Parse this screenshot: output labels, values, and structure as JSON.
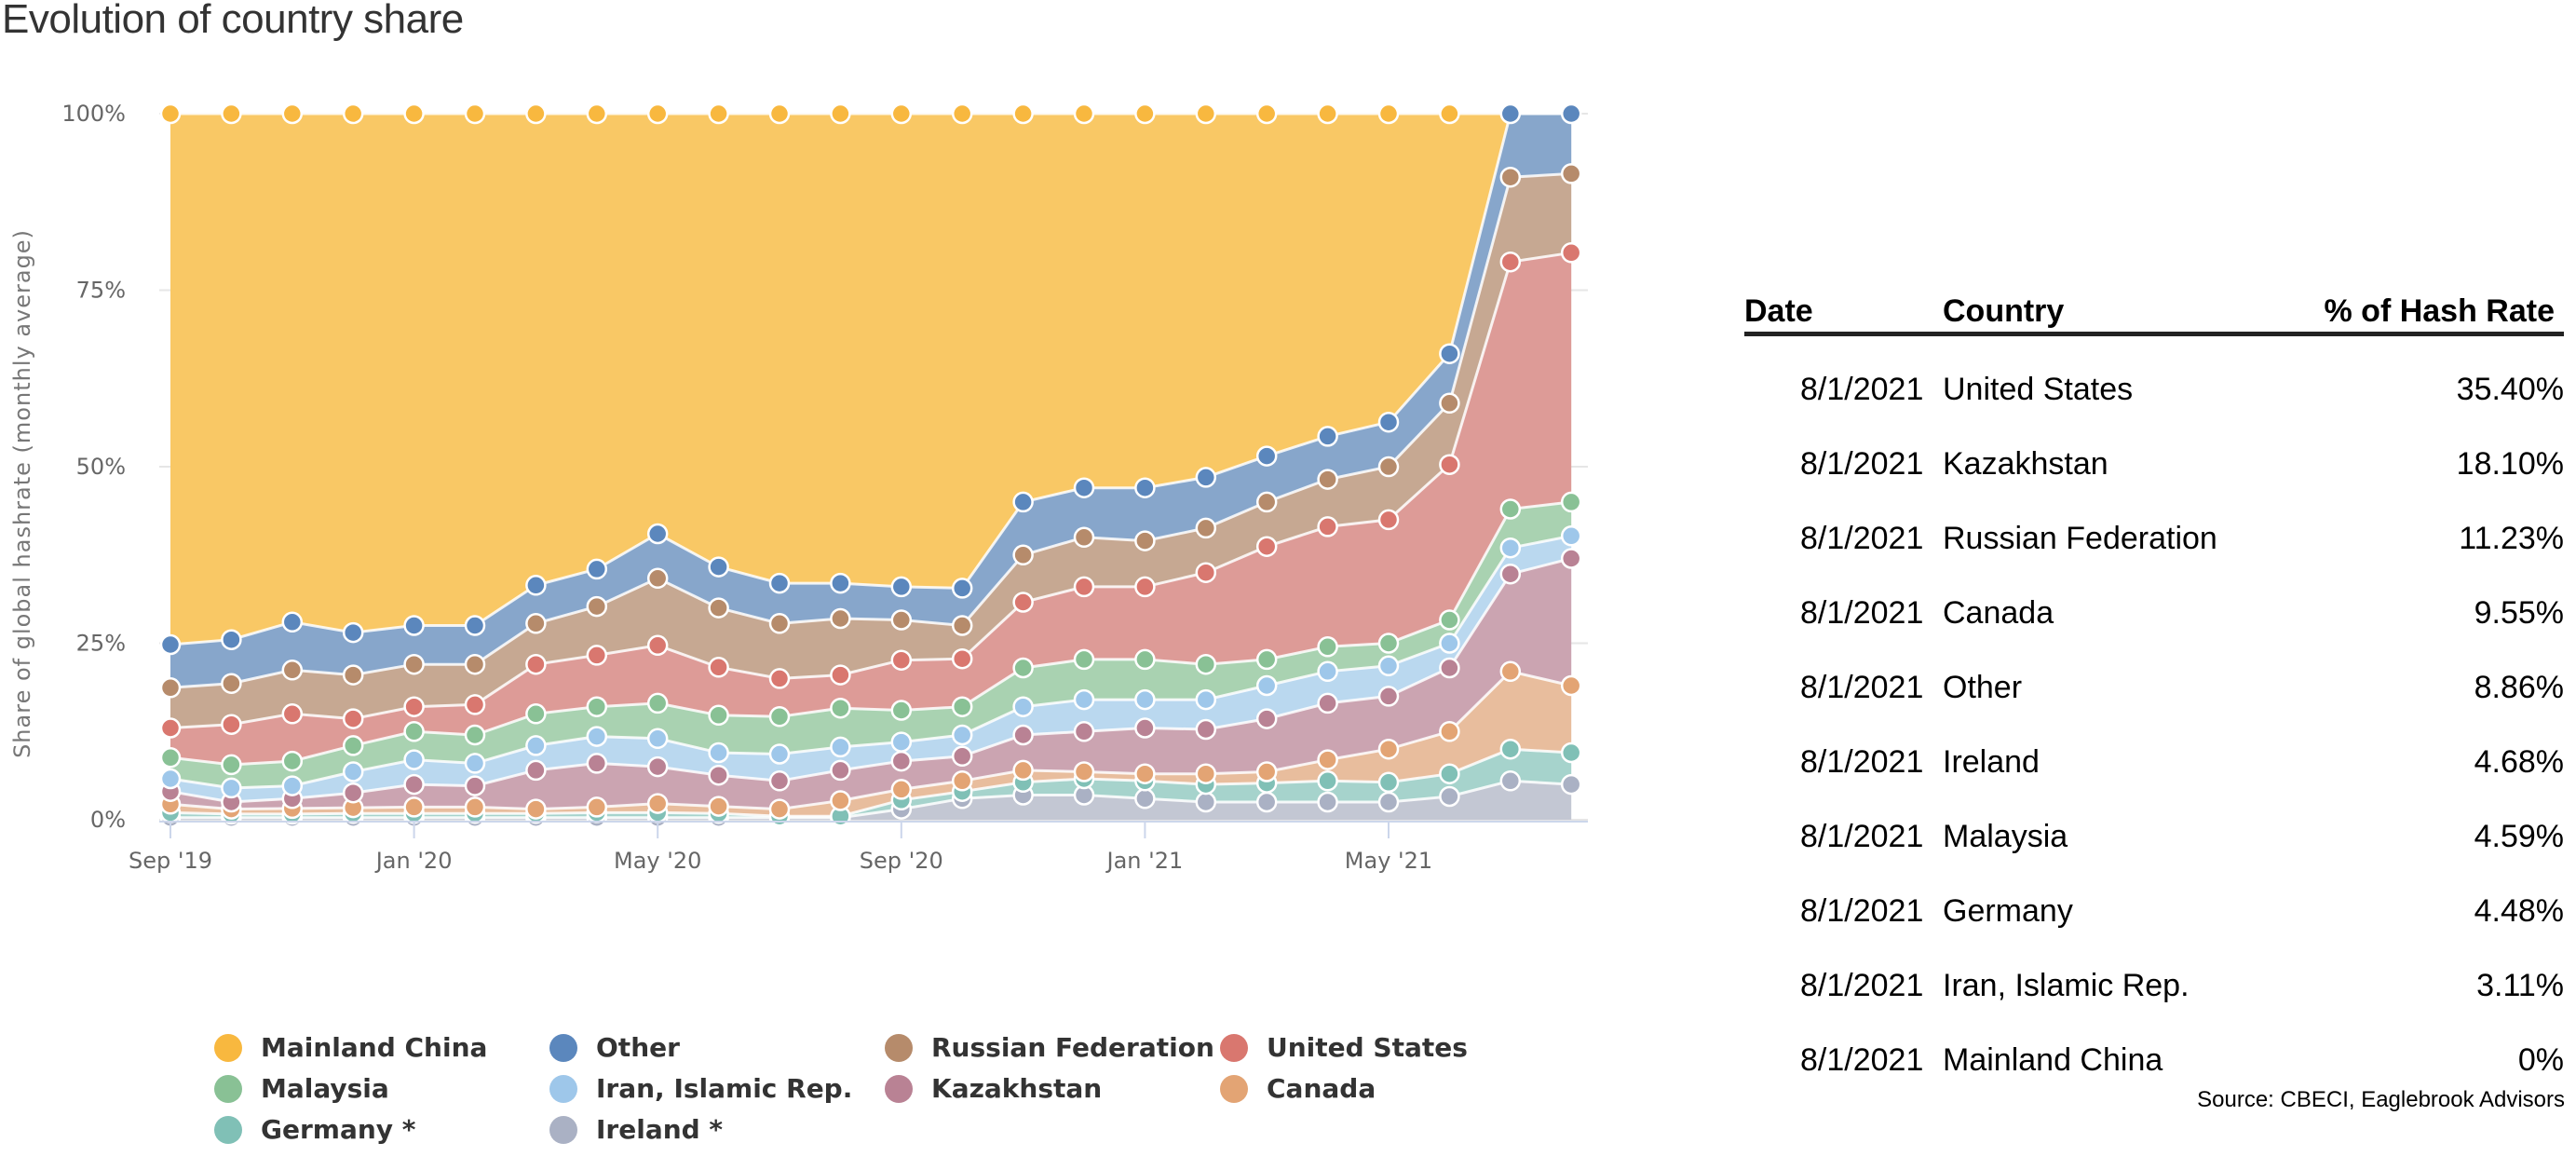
{
  "title": "Evolution of country share",
  "chart_data": {
    "type": "area",
    "stacking": "percent",
    "title": "Evolution of country share",
    "xlabel": "",
    "ylabel": "Share of global hashrate (monthly average)",
    "ylim": [
      0,
      100
    ],
    "y_ticks": [
      "0%",
      "25%",
      "50%",
      "75%",
      "100%"
    ],
    "y_tick_values": [
      0,
      25,
      50,
      75,
      100
    ],
    "x": [
      "Sep '19",
      "Oct '19",
      "Nov '19",
      "Dec '19",
      "Jan '20",
      "Feb '20",
      "Mar '20",
      "Apr '20",
      "May '20",
      "Jun '20",
      "Jul '20",
      "Aug '20",
      "Sep '20",
      "Oct '20",
      "Nov '20",
      "Dec '20",
      "Jan '21",
      "Feb '21",
      "Mar '21",
      "Apr '21",
      "May '21",
      "Jun '21",
      "Jul '21",
      "Aug '21"
    ],
    "x_tick_labels": [
      {
        "index": 0,
        "label": "Sep '19"
      },
      {
        "index": 4,
        "label": "Jan '20"
      },
      {
        "index": 8,
        "label": "May '20"
      },
      {
        "index": 12,
        "label": "Sep '20"
      },
      {
        "index": 16,
        "label": "Jan '21"
      },
      {
        "index": 20,
        "label": "May '21"
      }
    ],
    "grid": true,
    "legend_position": "bottom",
    "series": [
      {
        "name": "Ireland *",
        "color": "#aab1c4",
        "fill": "#c3c7d3",
        "values": [
          0.3,
          0.3,
          0.3,
          0.3,
          0.3,
          0.3,
          0.3,
          0.3,
          0.3,
          0.3,
          0.3,
          0.3,
          1.5,
          3.0,
          3.5,
          3.5,
          3.0,
          2.5,
          2.5,
          2.5,
          2.5,
          3.3,
          5.5,
          5.0
        ]
      },
      {
        "name": "Germany *",
        "color": "#80c0b6",
        "fill": "#a6d3cc",
        "values": [
          0.7,
          0.5,
          0.5,
          0.6,
          0.6,
          0.6,
          0.6,
          0.7,
          0.7,
          0.6,
          0.2,
          0.2,
          1.3,
          1.0,
          1.8,
          2.3,
          2.5,
          2.5,
          2.7,
          3.0,
          2.8,
          3.2,
          4.5,
          4.5
        ]
      },
      {
        "name": "Canada",
        "color": "#e3a474",
        "fill": "#e8bd9d",
        "values": [
          1.2,
          0.7,
          0.8,
          0.8,
          0.9,
          0.9,
          0.6,
          0.8,
          1.3,
          1.0,
          1.0,
          2.2,
          1.5,
          1.5,
          1.7,
          1.0,
          1.0,
          1.5,
          1.6,
          3.0,
          4.7,
          6.0,
          11.0,
          9.5
        ]
      },
      {
        "name": "Kazakhstan",
        "color": "#b98294",
        "fill": "#cba4b1",
        "values": [
          1.8,
          1.0,
          1.4,
          2.1,
          3.2,
          3.0,
          5.5,
          6.2,
          5.2,
          4.4,
          4.0,
          4.3,
          4.0,
          3.5,
          5.0,
          5.7,
          6.5,
          6.3,
          7.5,
          8.0,
          7.5,
          9.0,
          13.8,
          18.0
        ]
      },
      {
        "name": "Iran, Islamic Rep.",
        "color": "#9ec7ea",
        "fill": "#bad8ef",
        "values": [
          1.8,
          2.0,
          1.8,
          3.0,
          3.5,
          3.2,
          3.5,
          3.8,
          4.0,
          3.2,
          3.8,
          3.3,
          2.7,
          3.0,
          4.0,
          4.5,
          4.0,
          4.2,
          4.7,
          4.5,
          4.3,
          3.5,
          3.7,
          3.2
        ]
      },
      {
        "name": "Malaysia",
        "color": "#89c195",
        "fill": "#a9d2b1",
        "values": [
          3.0,
          3.3,
          3.5,
          3.7,
          4.0,
          4.0,
          4.5,
          4.2,
          5.0,
          5.3,
          5.3,
          5.5,
          4.5,
          4.0,
          5.5,
          5.7,
          5.7,
          5.0,
          3.7,
          3.5,
          3.2,
          3.3,
          5.5,
          4.8
        ]
      },
      {
        "name": "United States",
        "color": "#d9776f",
        "fill": "#dd9b97",
        "values": [
          4.2,
          5.7,
          6.7,
          3.8,
          3.5,
          4.3,
          7.0,
          7.3,
          8.2,
          6.8,
          5.4,
          4.7,
          7.1,
          6.8,
          9.3,
          10.3,
          10.3,
          13.0,
          16.0,
          17.0,
          17.5,
          22.0,
          35.0,
          35.3
        ]
      },
      {
        "name": "Russian Federation",
        "color": "#b68b6b",
        "fill": "#c6a892",
        "values": [
          5.7,
          5.8,
          6.2,
          6.2,
          6.0,
          5.7,
          5.8,
          6.9,
          9.5,
          8.4,
          7.8,
          8.0,
          5.7,
          4.7,
          6.7,
          7.0,
          6.5,
          6.3,
          6.3,
          6.7,
          7.5,
          8.7,
          12.0,
          11.2
        ]
      },
      {
        "name": "Other",
        "color": "#5b87bd",
        "fill": "#87a6cb",
        "values": [
          6.1,
          6.2,
          6.8,
          6.0,
          5.5,
          5.5,
          5.4,
          5.3,
          6.3,
          5.8,
          5.7,
          5.0,
          4.7,
          5.3,
          7.5,
          7.0,
          7.5,
          7.2,
          6.5,
          6.1,
          6.3,
          7.0,
          9.0,
          8.5
        ]
      },
      {
        "name": "Mainland China",
        "color": "#f8b83f",
        "fill": "#f9c865",
        "values": [
          75.2,
          74.5,
          72.0,
          73.5,
          72.5,
          72.5,
          66.8,
          64.5,
          59.5,
          64.2,
          66.5,
          66.5,
          67.0,
          67.2,
          55.0,
          53.0,
          53.0,
          51.5,
          48.5,
          45.7,
          43.7,
          34.0,
          0,
          0
        ]
      }
    ]
  },
  "legend": [
    {
      "label": "Mainland China",
      "color": "#f8b83f"
    },
    {
      "label": "Other",
      "color": "#5b87bd"
    },
    {
      "label": "Russian Federation",
      "color": "#b68b6b"
    },
    {
      "label": "United States",
      "color": "#d9776f"
    },
    {
      "label": "Malaysia",
      "color": "#89c195"
    },
    {
      "label": "Iran, Islamic Rep.",
      "color": "#9ec7ea"
    },
    {
      "label": "Kazakhstan",
      "color": "#b98294"
    },
    {
      "label": "Canada",
      "color": "#e3a474"
    },
    {
      "label": "Germany *",
      "color": "#80c0b6"
    },
    {
      "label": "Ireland *",
      "color": "#aab1c4"
    }
  ],
  "table": {
    "headers": {
      "date": "Date",
      "country": "Country",
      "pct": "% of Hash Rate"
    },
    "rows": [
      {
        "date": "8/1/2021",
        "country": "United States",
        "pct": "35.40%"
      },
      {
        "date": "8/1/2021",
        "country": "Kazakhstan",
        "pct": "18.10%"
      },
      {
        "date": "8/1/2021",
        "country": "Russian Federation",
        "pct": "11.23%"
      },
      {
        "date": "8/1/2021",
        "country": "Canada",
        "pct": "9.55%"
      },
      {
        "date": "8/1/2021",
        "country": "Other",
        "pct": "8.86%"
      },
      {
        "date": "8/1/2021",
        "country": "Ireland",
        "pct": "4.68%"
      },
      {
        "date": "8/1/2021",
        "country": "Malaysia",
        "pct": "4.59%"
      },
      {
        "date": "8/1/2021",
        "country": "Germany",
        "pct": "4.48%"
      },
      {
        "date": "8/1/2021",
        "country": "Iran, Islamic Rep.",
        "pct": "3.11%"
      },
      {
        "date": "8/1/2021",
        "country": "Mainland China",
        "pct": "0%"
      }
    ]
  },
  "source": "Source: CBECI, Eaglebrook Advisors"
}
